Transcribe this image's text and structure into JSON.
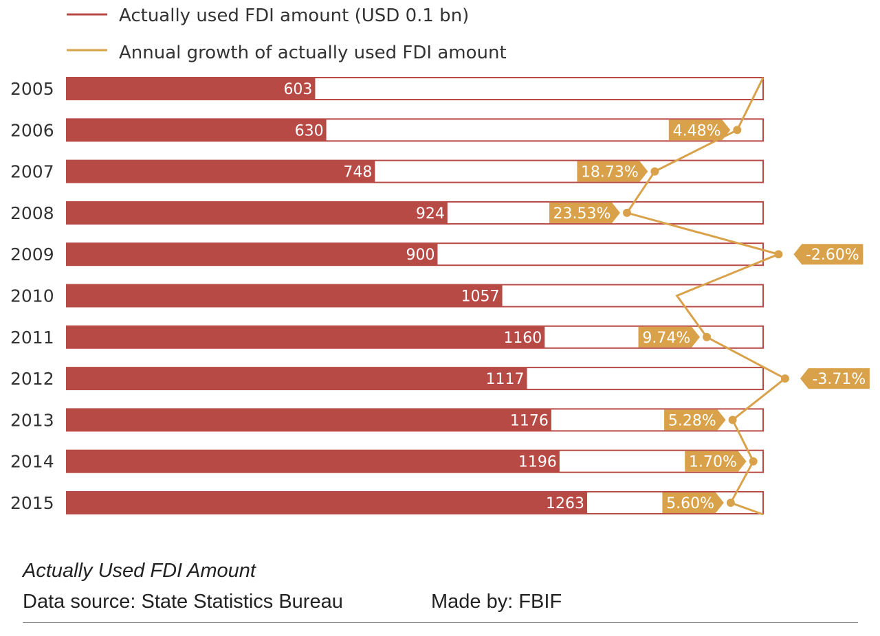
{
  "chart_data": {
    "type": "bar",
    "orientation": "horizontal",
    "title": "Actually Used FDI Amount",
    "categories": [
      "2005",
      "2006",
      "2007",
      "2008",
      "2009",
      "2010",
      "2011",
      "2012",
      "2013",
      "2014",
      "2015"
    ],
    "series": [
      {
        "name": "Actually used FDI amount (USD 0.1 bn)",
        "type": "bar",
        "color": "#b84a45",
        "values": [
          603,
          630,
          748,
          924,
          900,
          1057,
          1160,
          1117,
          1176,
          1196,
          1263
        ],
        "labels": [
          "603",
          "630",
          "748",
          "924",
          "900",
          "1057",
          "1160",
          "1117",
          "1176",
          "1196",
          "1263"
        ]
      },
      {
        "name": "Annual growth of actually used FDI amount",
        "type": "line",
        "color": "#d9a24a",
        "values": [
          null,
          4.48,
          18.73,
          23.53,
          -2.6,
          14.9,
          9.74,
          -3.71,
          5.28,
          1.7,
          5.6
        ],
        "labels": [
          "",
          "4.48%",
          "18.73%",
          "23.53%",
          "-2.60%",
          "",
          "9.74%",
          "-3.71%",
          "5.28%",
          "1.70%",
          "5.60%"
        ]
      }
    ],
    "xlim": [
      0,
      1690
    ],
    "growth_axis": [
      -8,
      40
    ],
    "legend_position": "top-left"
  },
  "footer": {
    "title": "Actually Used FDI Amount",
    "source": "Data source: State Statistics Bureau",
    "made_by": "Made by: FBIF"
  }
}
